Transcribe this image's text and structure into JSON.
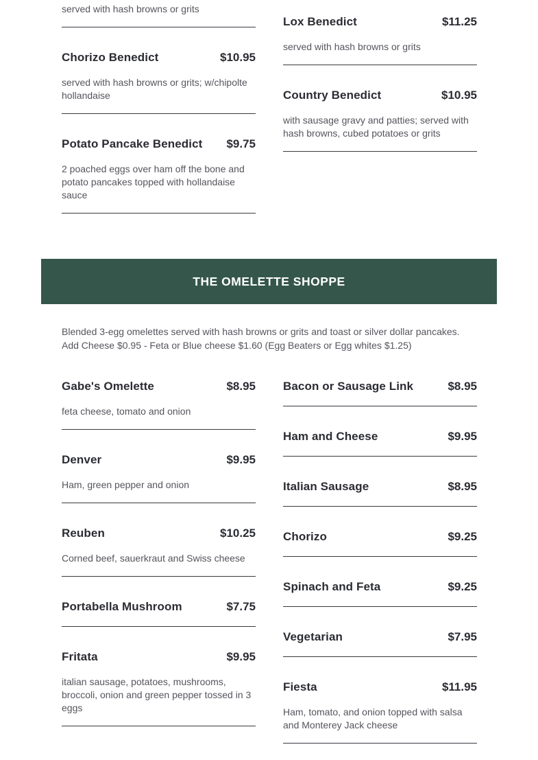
{
  "page": {
    "background_color": "#ffffff",
    "accent_green": "#35564b",
    "title_text_color": "#2b2c33",
    "description_text_color": "#54555d"
  },
  "benedict_section": {
    "left_items": [
      {
        "name": "",
        "price": "",
        "description": "served with hash browns or grits"
      },
      {
        "name": "Chorizo Benedict",
        "price": "$10.95",
        "description": "served with hash browns or grits; w/chipolte hollandaise"
      },
      {
        "name": "Potato Pancake Benedict",
        "price": "$9.75",
        "description": "2 poached eggs over ham off the bone and potato pancakes topped with hollandaise sauce"
      }
    ],
    "right_items": [
      {
        "name": "Lox Benedict",
        "price": "$11.25",
        "description": "served with hash browns or grits"
      },
      {
        "name": "Country Benedict",
        "price": "$10.95",
        "description": "with sausage gravy and patties; served with hash browns, cubed potatoes or grits"
      }
    ]
  },
  "omelette_section": {
    "title": "THE OMELETTE SHOPPE",
    "intro": "Blended 3-egg omelettes served with hash browns or grits and toast or silver dollar pancakes. Add Cheese $0.95 - Feta or Blue cheese $1.60 (Egg Beaters or Egg whites $1.25)",
    "left_items": [
      {
        "name": "Gabe's Omelette",
        "price": "$8.95",
        "description": "feta cheese, tomato and onion"
      },
      {
        "name": "Denver",
        "price": "$9.95",
        "description": "Ham, green pepper and onion"
      },
      {
        "name": "Reuben",
        "price": "$10.25",
        "description": "Corned beef, sauerkraut and Swiss cheese"
      },
      {
        "name": "Portabella Mushroom",
        "price": "$7.75",
        "description": ""
      },
      {
        "name": "Fritata",
        "price": "$9.95",
        "description": "italian sausage, potatoes, mushrooms, broccoli, onion and green pepper tossed in 3 eggs"
      }
    ],
    "right_items": [
      {
        "name": "Bacon or Sausage Link",
        "price": "$8.95",
        "description": ""
      },
      {
        "name": "Ham and Cheese",
        "price": "$9.95",
        "description": ""
      },
      {
        "name": "Italian Sausage",
        "price": "$8.95",
        "description": ""
      },
      {
        "name": "Chorizo",
        "price": "$9.25",
        "description": ""
      },
      {
        "name": "Spinach and Feta",
        "price": "$9.25",
        "description": ""
      },
      {
        "name": "Vegetarian",
        "price": "$7.95",
        "description": ""
      },
      {
        "name": "Fiesta",
        "price": "$11.95",
        "description": "Ham, tomato, and onion topped with salsa and Monterey Jack cheese"
      }
    ]
  }
}
